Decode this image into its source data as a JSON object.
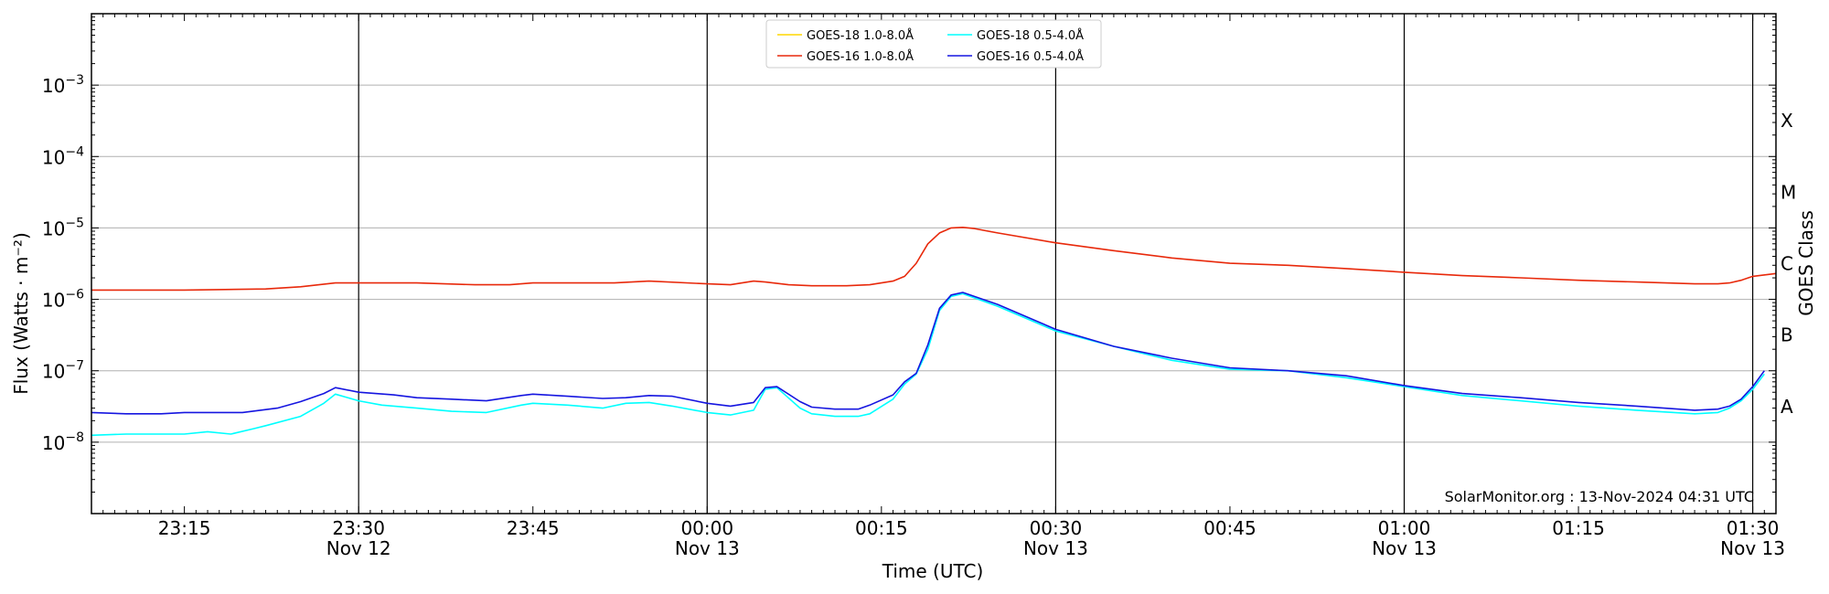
{
  "chart_data": {
    "type": "line",
    "xlabel": "Time (UTC)",
    "ylabel": "Flux (Watts · m⁻²)",
    "ylabel_right": "GOES Class",
    "yscale": "log",
    "xlim": [
      "23:07",
      "01:32"
    ],
    "ylim": [
      1e-09,
      0.01
    ],
    "grid": "horizontal",
    "legend_position": "top-center",
    "watermark": "SolarMonitor.org : 13-Nov-2024 04:31 UTC",
    "x_ticks": [
      {
        "time": "23:15",
        "label": "23:15",
        "sub": ""
      },
      {
        "time": "23:30",
        "label": "23:30",
        "sub": "Nov 12"
      },
      {
        "time": "23:45",
        "label": "23:45",
        "sub": ""
      },
      {
        "time": "00:00",
        "label": "00:00",
        "sub": "Nov 13"
      },
      {
        "time": "00:15",
        "label": "00:15",
        "sub": ""
      },
      {
        "time": "00:30",
        "label": "00:30",
        "sub": "Nov 13"
      },
      {
        "time": "00:45",
        "label": "00:45",
        "sub": ""
      },
      {
        "time": "01:00",
        "label": "01:00",
        "sub": "Nov 13"
      },
      {
        "time": "01:15",
        "label": "01:15",
        "sub": ""
      },
      {
        "time": "01:30",
        "label": "01:30",
        "sub": "Nov 13"
      }
    ],
    "vlines": [
      "23:30",
      "00:00",
      "00:30",
      "01:00",
      "01:30"
    ],
    "y_ticks": [
      {
        "exp": -8,
        "label": "10",
        "sup": "−8"
      },
      {
        "exp": -7,
        "label": "10",
        "sup": "−7"
      },
      {
        "exp": -6,
        "label": "10",
        "sup": "−6"
      },
      {
        "exp": -5,
        "label": "10",
        "sup": "−5"
      },
      {
        "exp": -4,
        "label": "10",
        "sup": "−4"
      },
      {
        "exp": -3,
        "label": "10",
        "sup": "−3"
      }
    ],
    "goes_classes": [
      {
        "label": "A",
        "exp": -7.5
      },
      {
        "label": "B",
        "exp": -6.5
      },
      {
        "label": "C",
        "exp": -5.5
      },
      {
        "label": "M",
        "exp": -4.5
      },
      {
        "label": "X",
        "exp": -3.5
      }
    ],
    "series": [
      {
        "name": "GOES-18 1.0-8.0Å",
        "color": "#ffd700",
        "x": [],
        "y": []
      },
      {
        "name": "GOES-16 1.0-8.0Å",
        "color": "#e8290b",
        "x": [
          "23:07",
          "23:15",
          "23:22",
          "23:25",
          "23:28",
          "23:30",
          "23:35",
          "23:40",
          "23:43",
          "23:45",
          "23:52",
          "23:55",
          "00:00",
          "00:02",
          "00:04",
          "00:05",
          "00:07",
          "00:09",
          "00:12",
          "00:14",
          "00:16",
          "00:17",
          "00:18",
          "00:19",
          "00:20",
          "00:21",
          "00:22",
          "00:23",
          "00:25",
          "00:30",
          "00:35",
          "00:40",
          "00:45",
          "00:50",
          "00:55",
          "01:00",
          "01:05",
          "01:10",
          "01:15",
          "01:20",
          "01:25",
          "01:27",
          "01:28",
          "01:29",
          "01:30",
          "01:32"
        ],
        "y": [
          1.35e-06,
          1.35e-06,
          1.4e-06,
          1.5e-06,
          1.7e-06,
          1.7e-06,
          1.7e-06,
          1.6e-06,
          1.6e-06,
          1.7e-06,
          1.7e-06,
          1.8e-06,
          1.65e-06,
          1.6e-06,
          1.8e-06,
          1.75e-06,
          1.6e-06,
          1.55e-06,
          1.55e-06,
          1.6e-06,
          1.8e-06,
          2.1e-06,
          3.2e-06,
          6e-06,
          8.5e-06,
          1e-05,
          1.02e-05,
          9.8e-06,
          8.5e-06,
          6.2e-06,
          4.8e-06,
          3.8e-06,
          3.2e-06,
          3e-06,
          2.7e-06,
          2.4e-06,
          2.15e-06,
          2e-06,
          1.85e-06,
          1.75e-06,
          1.65e-06,
          1.65e-06,
          1.7e-06,
          1.85e-06,
          2.1e-06,
          2.3e-06
        ]
      },
      {
        "name": "GOES-18 0.5-4.0Å",
        "color": "#00ffff",
        "x": [
          "23:07",
          "23:10",
          "23:13",
          "23:15",
          "23:17",
          "23:19",
          "23:21",
          "23:22",
          "23:25",
          "23:27",
          "23:28",
          "23:30",
          "23:32",
          "23:35",
          "23:38",
          "23:41",
          "23:44",
          "23:45",
          "23:48",
          "23:51",
          "23:53",
          "23:55",
          "23:57",
          "00:00",
          "00:02",
          "00:04",
          "00:05",
          "00:06",
          "00:08",
          "00:09",
          "00:11",
          "00:13",
          "00:14",
          "00:16",
          "00:17",
          "00:18",
          "00:19",
          "00:20",
          "00:21",
          "00:22",
          "00:25",
          "00:30",
          "00:35",
          "00:40",
          "00:45",
          "00:50",
          "00:55",
          "01:00",
          "01:05",
          "01:10",
          "01:15",
          "01:20",
          "01:25",
          "01:27",
          "01:28",
          "01:29",
          "01:30",
          "01:31"
        ],
        "y": [
          1.25e-08,
          1.3e-08,
          1.3e-08,
          1.3e-08,
          1.4e-08,
          1.3e-08,
          1.55e-08,
          1.7e-08,
          2.3e-08,
          3.5e-08,
          4.7e-08,
          3.8e-08,
          3.3e-08,
          3e-08,
          2.7e-08,
          2.6e-08,
          3.3e-08,
          3.5e-08,
          3.3e-08,
          3e-08,
          3.5e-08,
          3.6e-08,
          3.2e-08,
          2.6e-08,
          2.4e-08,
          2.8e-08,
          5.5e-08,
          5.8e-08,
          3e-08,
          2.5e-08,
          2.3e-08,
          2.3e-08,
          2.5e-08,
          4e-08,
          6.5e-08,
          9e-08,
          2e-07,
          7e-07,
          1.1e-06,
          1.2e-06,
          8e-07,
          3.6e-07,
          2.2e-07,
          1.4e-07,
          1.05e-07,
          1e-07,
          8e-08,
          6e-08,
          4.5e-08,
          3.8e-08,
          3.2e-08,
          2.8e-08,
          2.5e-08,
          2.6e-08,
          3e-08,
          3.8e-08,
          5.5e-08,
          9e-08
        ]
      },
      {
        "name": "GOES-16 0.5-4.0Å",
        "color": "#1515e0",
        "x": [
          "23:07",
          "23:10",
          "23:13",
          "23:15",
          "23:20",
          "23:23",
          "23:25",
          "23:27",
          "23:28",
          "23:30",
          "23:33",
          "23:35",
          "23:38",
          "23:41",
          "23:44",
          "23:45",
          "23:48",
          "23:51",
          "23:53",
          "23:55",
          "23:57",
          "00:00",
          "00:02",
          "00:04",
          "00:05",
          "00:06",
          "00:08",
          "00:09",
          "00:11",
          "00:13",
          "00:14",
          "00:16",
          "00:17",
          "00:18",
          "00:19",
          "00:20",
          "00:21",
          "00:22",
          "00:25",
          "00:30",
          "00:35",
          "00:40",
          "00:45",
          "00:50",
          "00:55",
          "01:00",
          "01:05",
          "01:10",
          "01:15",
          "01:20",
          "01:25",
          "01:27",
          "01:28",
          "01:29",
          "01:30",
          "01:31"
        ],
        "y": [
          2.6e-08,
          2.5e-08,
          2.5e-08,
          2.6e-08,
          2.6e-08,
          3e-08,
          3.7e-08,
          4.8e-08,
          5.8e-08,
          5e-08,
          4.6e-08,
          4.2e-08,
          4e-08,
          3.8e-08,
          4.5e-08,
          4.7e-08,
          4.4e-08,
          4.1e-08,
          4.2e-08,
          4.5e-08,
          4.4e-08,
          3.5e-08,
          3.2e-08,
          3.6e-08,
          5.8e-08,
          6e-08,
          3.7e-08,
          3.1e-08,
          2.9e-08,
          2.9e-08,
          3.3e-08,
          4.6e-08,
          7e-08,
          9.2e-08,
          2.3e-07,
          7.5e-07,
          1.15e-06,
          1.25e-06,
          8.5e-07,
          3.8e-07,
          2.2e-07,
          1.5e-07,
          1.1e-07,
          1e-07,
          8.5e-08,
          6.2e-08,
          4.8e-08,
          4.2e-08,
          3.6e-08,
          3.2e-08,
          2.8e-08,
          2.9e-08,
          3.2e-08,
          4e-08,
          6e-08,
          1e-07
        ]
      }
    ]
  }
}
